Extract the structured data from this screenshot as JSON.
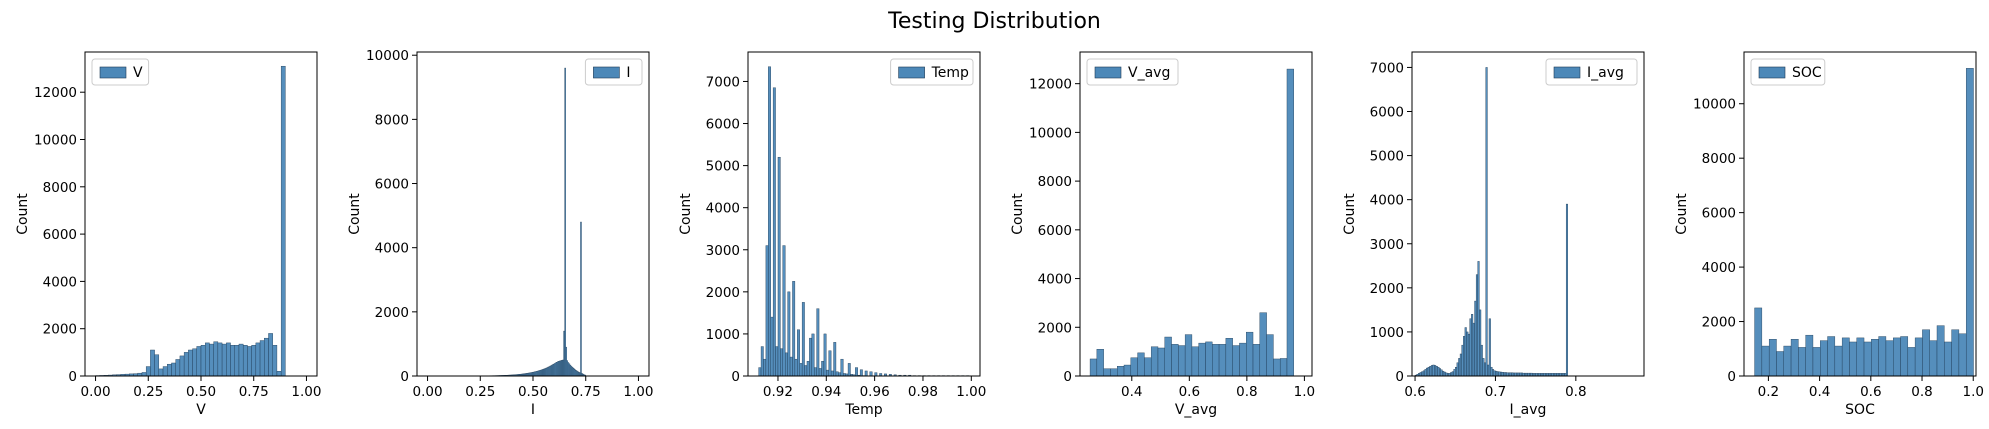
{
  "figure": {
    "title": "Testing Distribution"
  },
  "colors": {
    "bar_fill": "#4c88b8",
    "bar_edge": "#1f3b55",
    "axis": "#000000"
  },
  "chart_data": [
    {
      "type": "bar",
      "xlabel": "V",
      "ylabel": "Count",
      "legend": "V",
      "legend_position": "top-left",
      "xlim": [
        -0.05,
        1.05
      ],
      "ylim": [
        0,
        13700
      ],
      "xticks": [
        0.0,
        0.25,
        0.5,
        0.75,
        1.0
      ],
      "xtick_labels": [
        "0.00",
        "0.25",
        "0.50",
        "0.75",
        "1.00"
      ],
      "yticks": [
        0,
        2000,
        4000,
        6000,
        8000,
        10000,
        12000
      ],
      "ytick_labels": [
        "0",
        "2000",
        "4000",
        "6000",
        "8000",
        "10000",
        "12000"
      ],
      "bin_start": 0.0,
      "bin_width": 0.02,
      "values": [
        20,
        25,
        30,
        40,
        50,
        60,
        70,
        80,
        90,
        100,
        120,
        150,
        400,
        1100,
        900,
        300,
        400,
        500,
        550,
        700,
        850,
        1000,
        1100,
        1150,
        1250,
        1300,
        1400,
        1350,
        1450,
        1400,
        1350,
        1400,
        1300,
        1300,
        1350,
        1300,
        1250,
        1300,
        1400,
        1500,
        1600,
        1800,
        1300,
        200,
        13100
      ]
    },
    {
      "type": "bar",
      "xlabel": "I",
      "ylabel": "Count",
      "legend": "I",
      "legend_position": "top-right",
      "xlim": [
        -0.05,
        1.05
      ],
      "ylim": [
        0,
        10100
      ],
      "xticks": [
        0.0,
        0.25,
        0.5,
        0.75,
        1.0
      ],
      "xtick_labels": [
        "0.00",
        "0.25",
        "0.50",
        "0.75",
        "1.00"
      ],
      "yticks": [
        0,
        2000,
        4000,
        6000,
        8000,
        10000
      ],
      "ytick_labels": [
        "0",
        "2000",
        "4000",
        "6000",
        "8000",
        "10000"
      ],
      "bin_start": 0.2,
      "bin_width": 0.005,
      "values": [
        3,
        3,
        3,
        4,
        4,
        4,
        5,
        5,
        5,
        5,
        6,
        6,
        6,
        7,
        7,
        8,
        8,
        9,
        9,
        10,
        10,
        11,
        12,
        12,
        13,
        14,
        15,
        16,
        17,
        18,
        19,
        20,
        21,
        22,
        24,
        25,
        27,
        29,
        31,
        33,
        35,
        37,
        40,
        42,
        45,
        48,
        51,
        55,
        58,
        62,
        66,
        70,
        75,
        80,
        85,
        90,
        96,
        102,
        108,
        115,
        122,
        130,
        138,
        146,
        155,
        165,
        175,
        185,
        196,
        208,
        220,
        233,
        247,
        262,
        278,
        295,
        312,
        330,
        349,
        370,
        390,
        410,
        430,
        445,
        460,
        470,
        480,
        490,
        500,
        1400,
        9600,
        900,
        480,
        420,
        380,
        340,
        300,
        270,
        240,
        210,
        180,
        160,
        140,
        120,
        100,
        4800,
        80,
        60,
        40,
        30
      ]
    },
    {
      "type": "bar",
      "xlabel": "Temp",
      "ylabel": "Count",
      "legend": "Temp",
      "legend_position": "top-right",
      "xlim": [
        0.9076,
        1.0036
      ],
      "ylim": [
        0,
        7700
      ],
      "xticks": [
        0.92,
        0.94,
        0.96,
        0.98,
        1.0
      ],
      "xtick_labels": [
        "0.92",
        "0.94",
        "0.96",
        "0.98",
        "1.00"
      ],
      "yticks": [
        0,
        1000,
        2000,
        3000,
        4000,
        5000,
        6000,
        7000
      ],
      "ytick_labels": [
        "0",
        "1000",
        "2000",
        "3000",
        "4000",
        "5000",
        "6000",
        "7000"
      ],
      "bin_start": 0.912,
      "bin_width": 0.001,
      "values": [
        200,
        700,
        400,
        3100,
        7350,
        1400,
        6850,
        700,
        5200,
        650,
        3100,
        550,
        2000,
        450,
        2250,
        400,
        1100,
        300,
        1750,
        250,
        350,
        900,
        1000,
        200,
        1600,
        180,
        350,
        1000,
        140,
        600,
        120,
        800,
        100,
        80,
        400,
        60,
        50,
        300,
        40,
        30,
        200,
        20,
        150,
        10,
        120,
        5,
        100,
        5,
        80,
        5,
        60,
        5,
        50,
        5,
        40,
        5,
        30,
        5,
        20,
        5,
        20,
        5,
        20,
        5,
        10,
        5,
        10,
        5,
        10,
        5,
        10,
        5,
        10,
        5,
        10,
        5,
        10,
        5,
        10,
        5,
        10,
        5,
        10,
        5,
        10,
        5,
        10,
        5
      ]
    },
    {
      "type": "bar",
      "xlabel": "V_avg",
      "ylabel": "Count",
      "legend": "V_avg",
      "legend_position": "top-left",
      "xlim": [
        0.22,
        1.0264
      ],
      "ylim": [
        0,
        13300
      ],
      "xticks": [
        0.4,
        0.6,
        0.8,
        1.0
      ],
      "xtick_labels": [
        "0.4",
        "0.6",
        "0.8",
        "1.0"
      ],
      "yticks": [
        0,
        2000,
        4000,
        6000,
        8000,
        10000,
        12000
      ],
      "ytick_labels": [
        "0",
        "2000",
        "4000",
        "6000",
        "8000",
        "10000",
        "12000"
      ],
      "bin_start": 0.255,
      "bin_width": 0.0236,
      "values": [
        700,
        1100,
        300,
        300,
        400,
        450,
        750,
        950,
        750,
        1200,
        1150,
        1600,
        1300,
        1250,
        1700,
        1200,
        1350,
        1400,
        1300,
        1300,
        1550,
        1250,
        1350,
        1800,
        1300,
        2600,
        1700,
        700,
        720,
        12600
      ]
    },
    {
      "type": "bar",
      "xlabel": "I_avg",
      "ylabel": "Count",
      "legend": "I_avg",
      "legend_position": "top-right",
      "xlim": [
        0.5962,
        0.8848
      ],
      "ylim": [
        0,
        7350
      ],
      "xticks": [
        0.6,
        0.7,
        0.8
      ],
      "xtick_labels": [
        "0.6",
        "0.7",
        "0.8"
      ],
      "yticks": [
        0,
        1000,
        2000,
        3000,
        4000,
        5000,
        6000,
        7000
      ],
      "ytick_labels": [
        "0",
        "1000",
        "2000",
        "3000",
        "4000",
        "5000",
        "6000",
        "7000"
      ],
      "bin_start": 0.6,
      "bin_width": 0.002,
      "values": [
        20,
        40,
        60,
        80,
        100,
        120,
        150,
        180,
        200,
        220,
        240,
        250,
        240,
        220,
        200,
        170,
        140,
        110,
        90,
        70,
        60,
        60,
        80,
        100,
        150,
        200,
        300,
        400,
        500,
        700,
        900,
        1100,
        1000,
        950,
        1300,
        1400,
        1200,
        1700,
        2300,
        2600,
        1500,
        700,
        400,
        300,
        7000,
        250,
        1300,
        200,
        150,
        120,
        110,
        100,
        95,
        90,
        85,
        80,
        80,
        75,
        75,
        75,
        75,
        70,
        70,
        70,
        70,
        70,
        70,
        65,
        65,
        65,
        65,
        65,
        65,
        60,
        60,
        60,
        60,
        60,
        60,
        60,
        60,
        60,
        60,
        60,
        60,
        60,
        60,
        60,
        60,
        60,
        60,
        60,
        60,
        60,
        3900
      ]
    },
    {
      "type": "bar",
      "xlabel": "SOC",
      "ylabel": "Count",
      "legend": "SOC",
      "legend_position": "top-left",
      "xlim": [
        0.1047,
        1.0108
      ],
      "ylim": [
        0,
        11900
      ],
      "xticks": [
        0.2,
        0.4,
        0.6,
        0.8,
        1.0
      ],
      "xtick_labels": [
        "0.2",
        "0.4",
        "0.6",
        "0.8",
        "1.0"
      ],
      "yticks": [
        0,
        2000,
        4000,
        6000,
        8000,
        10000
      ],
      "ytick_labels": [
        "0",
        "2000",
        "4000",
        "6000",
        "8000",
        "10000"
      ],
      "bin_start": 0.146,
      "bin_width": 0.0285,
      "values": [
        2500,
        1100,
        1350,
        900,
        1100,
        1350,
        1050,
        1500,
        1050,
        1300,
        1450,
        1100,
        1400,
        1250,
        1400,
        1250,
        1350,
        1450,
        1300,
        1400,
        1450,
        1050,
        1400,
        1700,
        1300,
        1850,
        1250,
        1700,
        1550,
        11300
      ]
    }
  ]
}
